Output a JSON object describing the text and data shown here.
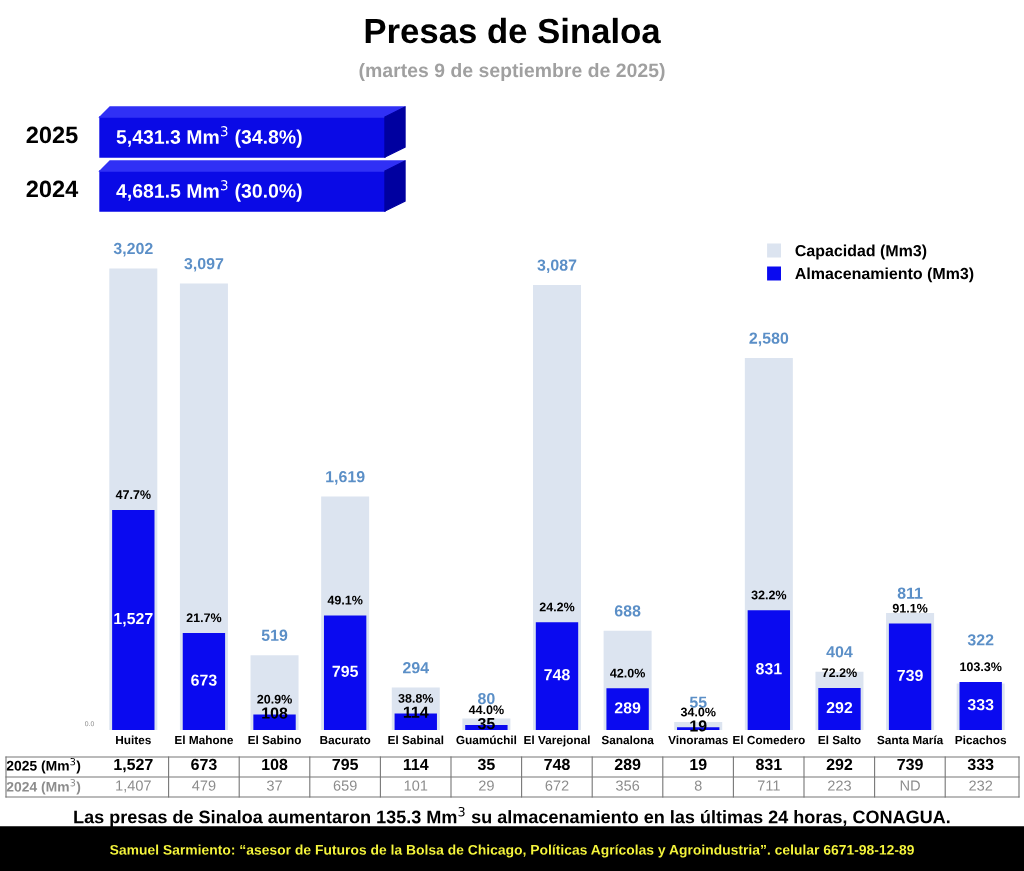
{
  "chart_data": {
    "type": "bar",
    "title": "Presas de Sinaloa",
    "subtitle": "(martes 9 de septiembre de 2025)",
    "categories": [
      "Huites",
      "El Mahone",
      "El Sabino",
      "Bacurato",
      "El Sabinal",
      "Guamúchil",
      "El Varejonal",
      "Sanalona",
      "Vinoramas",
      "El Comedero",
      "El Salto",
      "Santa María",
      "Picachos"
    ],
    "series": [
      {
        "name": "Capacidad (Mm3)",
        "color": "#dce4f0",
        "values": [
          3202,
          3097,
          519,
          1619,
          294,
          80,
          3087,
          688,
          55,
          2580,
          404,
          811,
          322
        ],
        "value_labels": [
          "3,202",
          "3,097",
          "519",
          "1,619",
          "294",
          "80",
          "3,087",
          "688",
          "55",
          "2,580",
          "404",
          "811",
          "322"
        ]
      },
      {
        "name": "Almacenamiento (Mm3)",
        "color": "#0a0af0",
        "values": [
          1527,
          673,
          108,
          795,
          114,
          35,
          748,
          289,
          19,
          831,
          292,
          739,
          333
        ],
        "value_labels": [
          "1,527",
          "673",
          "108",
          "795",
          "114",
          "35",
          "748",
          "289",
          "19",
          "831",
          "292",
          "739",
          "333"
        ]
      }
    ],
    "grid": false,
    "legend": "top right",
    "marker": "square",
    "annotations": [
      "2025",
      "5,431.3 Mm$^{3}$ (34.8%)",
      "2024",
      "4,681.5 Mm$^{3}$ (30.0%)",
      "0.0",
      "Las presas de Sinaloa aumentaron 135.3 Mm$^{3}$ su almacenamiento en las últimas 24 horas, CONAGUA.",
      "Samuel Sarmiento: “asesor de Futuros de la Bolsa de Chicago, Políticas Agrícolas y Agroindustria”. celular 6671-98-12-89",
      "2025 (Mm$^{3}$)",
      "1,527",
      "673",
      "108",
      "795",
      "114",
      "35",
      "748",
      "289",
      "19",
      "831",
      "292",
      "739",
      "333",
      "2024 (Mm$^{3}$)",
      "1,407",
      "479",
      "37",
      "659",
      "101",
      "29",
      "672",
      "356",
      "8",
      "711",
      "223",
      "ND",
      "232",
      {
        "text": "47.7%",
        "x": "Huites",
        "y": 1527
      },
      {
        "text": "21.7%",
        "x": "El Mahone",
        "y": 673
      },
      {
        "text": "20.9%",
        "x": "El Sabino",
        "y": 108
      },
      {
        "text": "49.1%",
        "x": "Bacurato",
        "y": 795
      },
      {
        "text": "38.8%",
        "x": "El Sabinal",
        "y": 114
      },
      {
        "text": "44.0%",
        "x": "Guamúchil",
        "y": 35
      },
      {
        "text": "24.2%",
        "x": "El Varejonal",
        "y": 748
      },
      {
        "text": "42.0%",
        "x": "Sanalona",
        "y": 289
      },
      {
        "text": "34.0%",
        "x": "Vinoramas",
        "y": 19
      },
      {
        "text": "32.2%",
        "x": "El Comedero",
        "y": 831
      },
      {
        "text": "72.2%",
        "x": "El Salto",
        "y": 292
      },
      {
        "text": "91.1%",
        "x": "Santa María",
        "y": 739
      },
      {
        "text": "103.3%",
        "x": "Picachos",
        "y": 333
      }
    ]
  }
}
